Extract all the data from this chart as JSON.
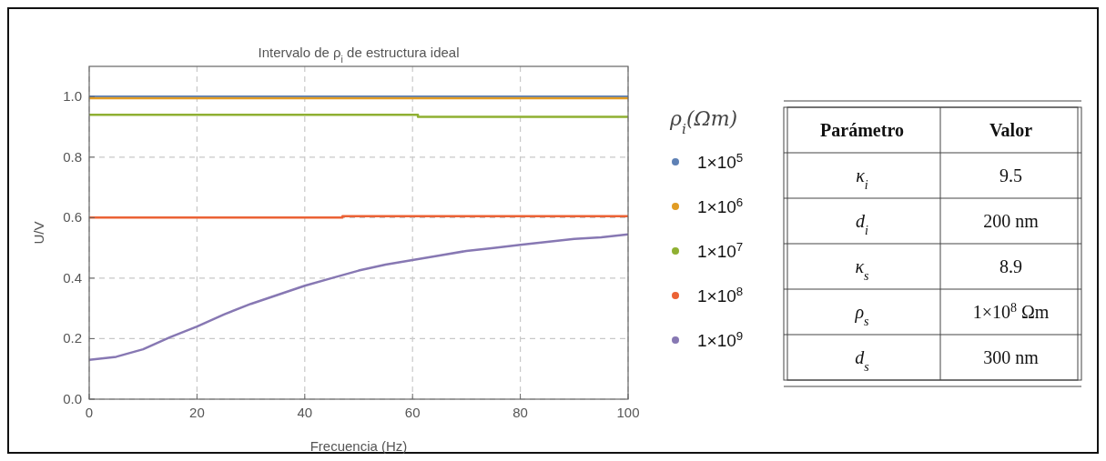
{
  "chart_data": [
    {
      "type": "line",
      "title": "Intervalo de ρ$_{i}$ de estructura ideal",
      "xlabel": "Frecuencia (Hz)",
      "ylabel": "U/V",
      "legend_title": "ρ$_{i}$(Ωm)",
      "legend": "right",
      "grid": true,
      "line_style": "solid",
      "xlim": [
        0,
        100
      ],
      "xticks": [
        0,
        20,
        40,
        60,
        80,
        100
      ],
      "ylim": [
        0,
        1.1
      ],
      "yticks": [
        {
          "value": 0,
          "label": "0.0"
        },
        0.2,
        0.4,
        0.6,
        0.8,
        {
          "value": 1,
          "label": "1.0"
        }
      ],
      "series": [
        {
          "name": "1×10$^{5}$",
          "color": "#5e81b5",
          "x": [
            0,
            100
          ],
          "values": [
            1.0,
            1.0
          ]
        },
        {
          "name": "1×10$^{6}$",
          "color": "#e19c24",
          "x": [
            0,
            100
          ],
          "values": [
            0.995,
            0.995
          ]
        },
        {
          "name": "1×10$^{7}$",
          "color": "#8fb032",
          "x": [
            0,
            61,
            61,
            100
          ],
          "values": [
            0.94,
            0.94,
            0.933,
            0.933
          ]
        },
        {
          "name": "1×10$^{8}$",
          "color": "#eb6235",
          "x": [
            0,
            47,
            47,
            100
          ],
          "values": [
            0.6,
            0.6,
            0.605,
            0.605
          ]
        },
        {
          "name": "1×10$^{9}$",
          "color": "#8778b3",
          "x": [
            0,
            5,
            10,
            15,
            20,
            25,
            30,
            35,
            40,
            45,
            50,
            55,
            60,
            65,
            70,
            75,
            80,
            85,
            90,
            95,
            100
          ],
          "values": [
            0.13,
            0.14,
            0.165,
            0.205,
            0.24,
            0.28,
            0.315,
            0.345,
            0.375,
            0.4,
            0.425,
            0.445,
            0.46,
            0.475,
            0.49,
            0.5,
            0.51,
            0.52,
            0.53,
            0.535,
            0.545
          ]
        }
      ]
    },
    {
      "type": "other",
      "annotations": [
        "Parámetro",
        "Valor",
        "κ$_{i}$",
        "9.5",
        "d$_{i}$",
        "200 nm",
        "κ$_{s}$",
        "8.9",
        "ρ$_{s}$",
        "1×10$^{8}$ Ωm",
        "d$_{s}$",
        "300 nm"
      ]
    }
  ]
}
